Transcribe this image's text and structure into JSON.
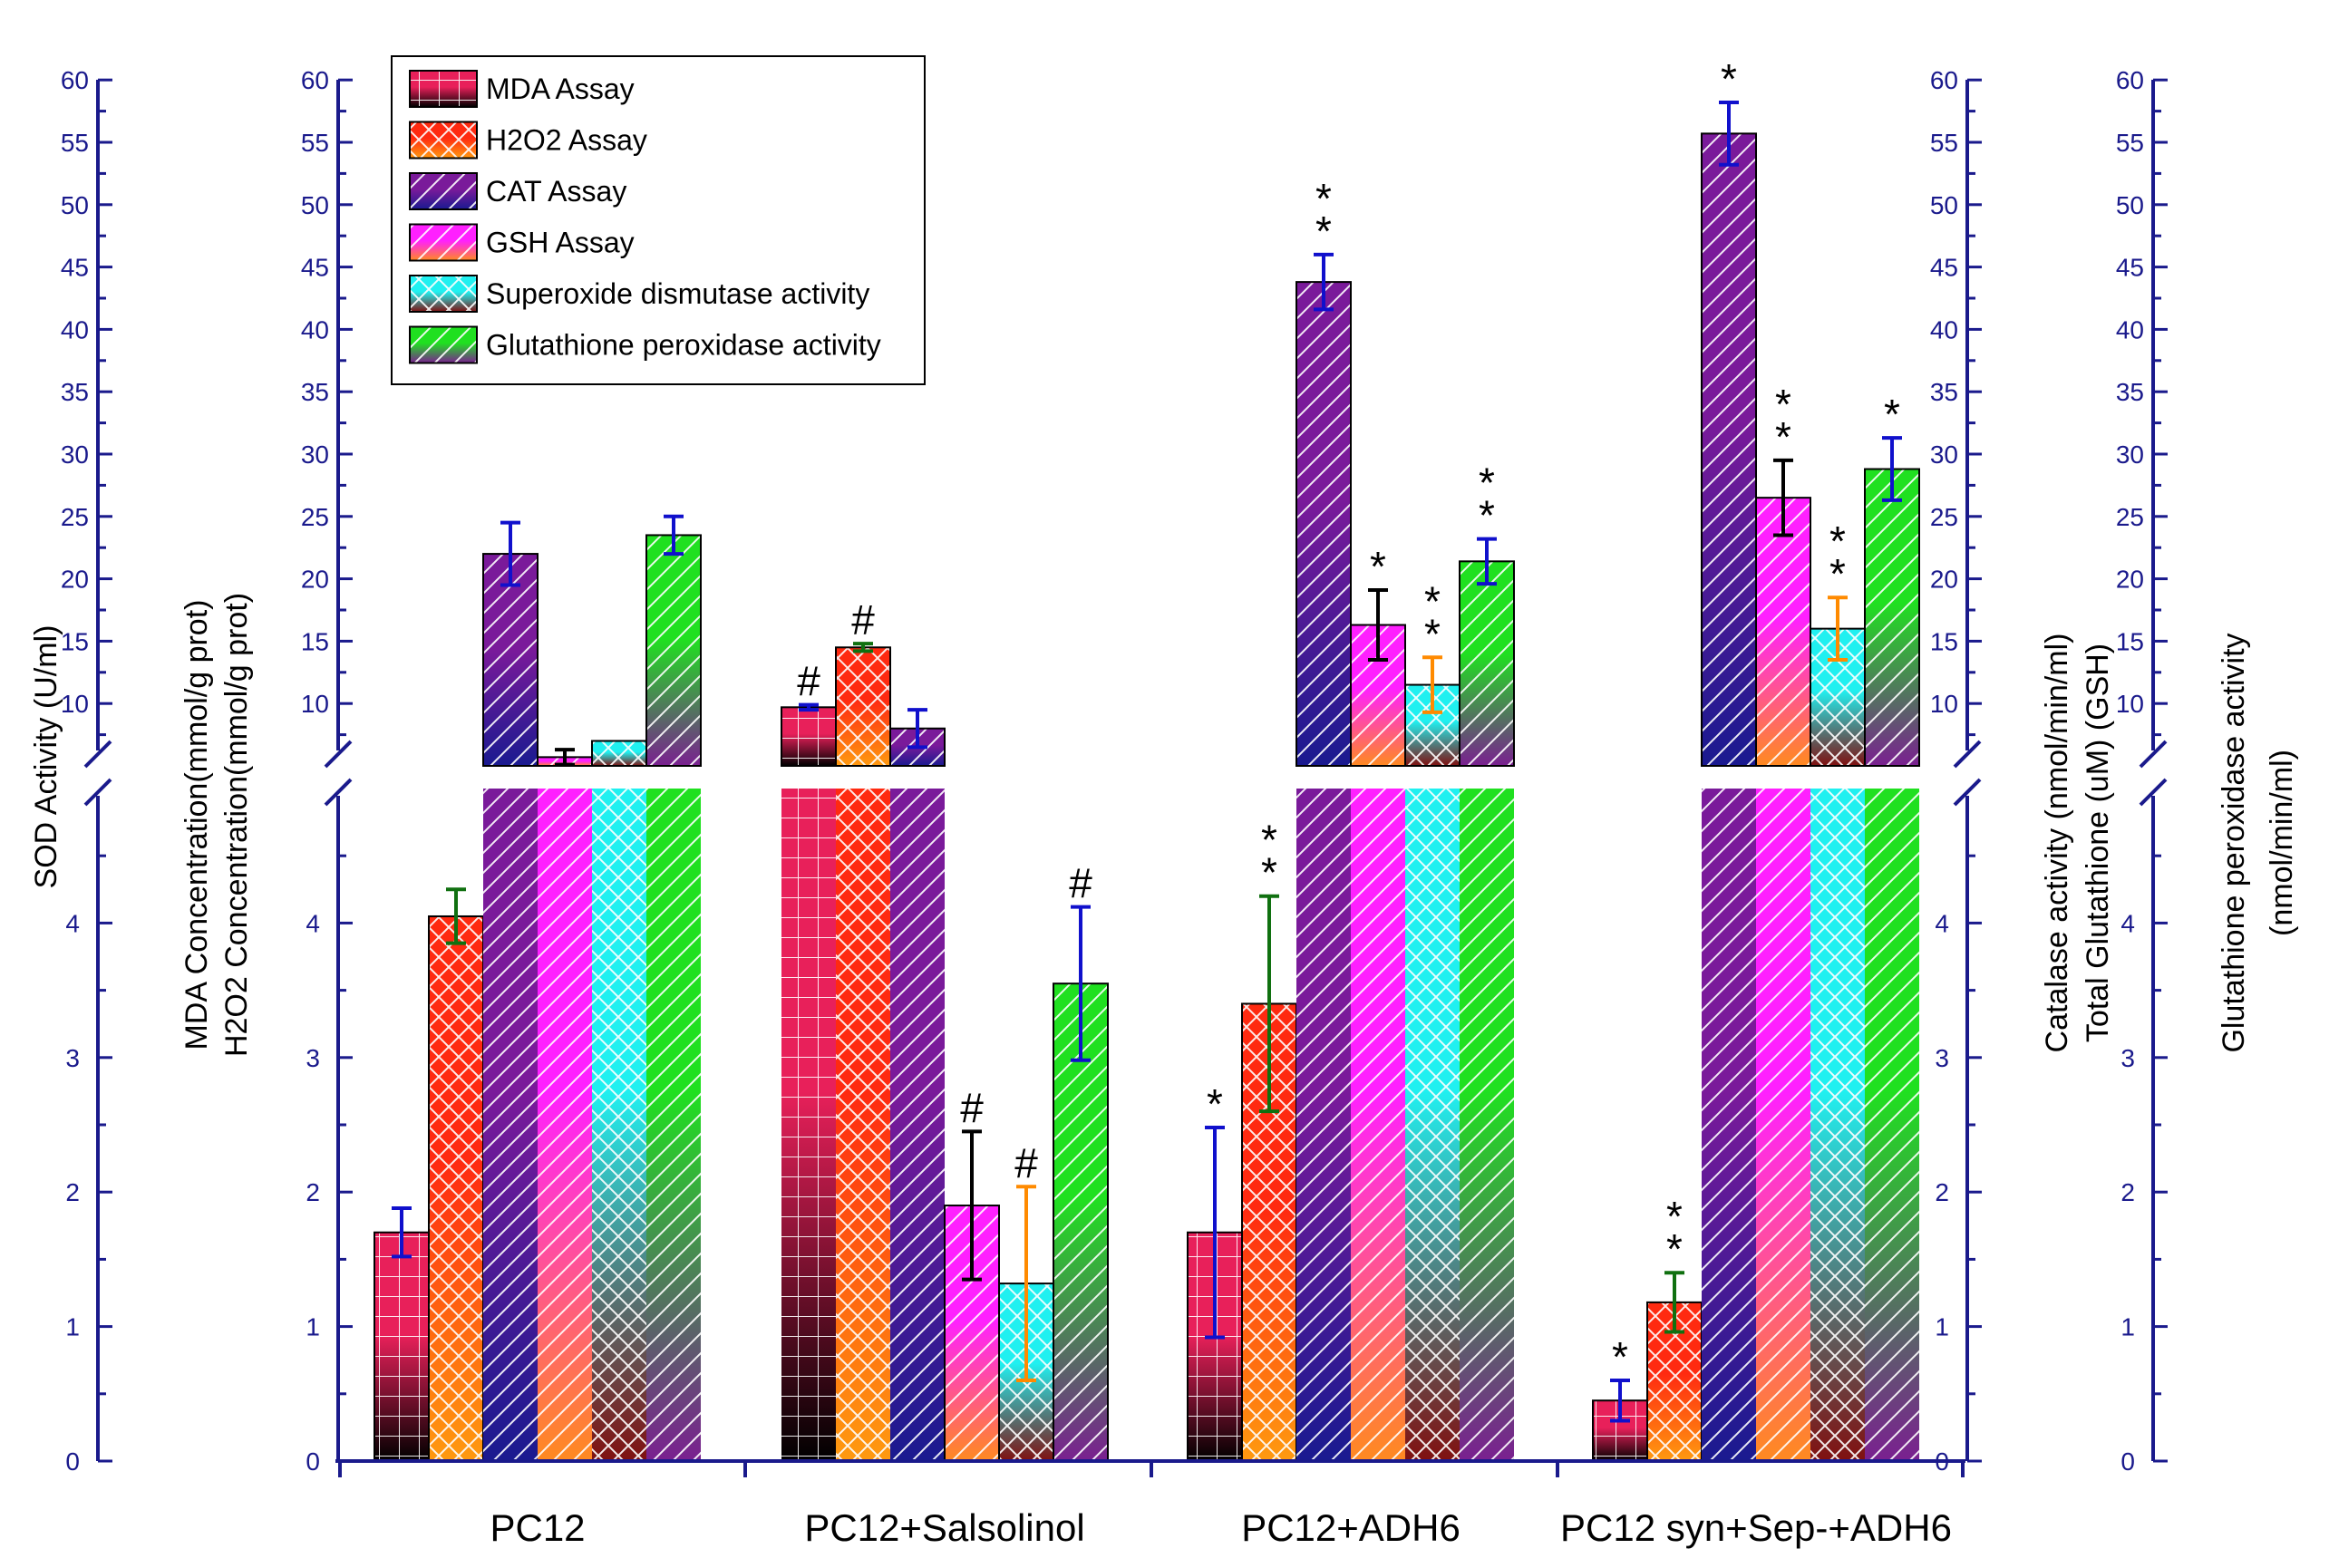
{
  "chart_data": {
    "type": "bar",
    "categories": [
      "PC12",
      "PC12+Salsolinol",
      "PC12+ADH6",
      "PC12 syn+Sep-+ADH6"
    ],
    "axis_break": {
      "lower_range": [
        0,
        5
      ],
      "upper_range": [
        5,
        60
      ]
    },
    "ylim": [
      0,
      60
    ],
    "axis_titles": {
      "sod": "SOD Activity (U/ml)",
      "mda": "MDA Concentration(mmol/g prot)",
      "h2o2": "H2O2 Concentration(mmol/g prot)",
      "catalase": "Catalase activity (nmol/min/ml)",
      "glutathione": "Total Glutathione (uM) (GSH)",
      "gpx_line1": "Glutathione peroxidase activity",
      "gpx_line2": "(nmol/min/ml)"
    },
    "lower_ticks": [
      "0",
      "1",
      "2",
      "3",
      "4"
    ],
    "upper_ticks": [
      "10",
      "15",
      "20",
      "25",
      "30",
      "35",
      "40",
      "45",
      "50",
      "55",
      "60"
    ],
    "series": [
      {
        "name": "MDA Assay",
        "color": "#e8205a",
        "dark": "#000000",
        "pattern": "grid",
        "err_color": "#1010cc",
        "values": [
          1.7,
          9.7,
          1.7,
          0.45
        ],
        "errors": [
          0.18,
          0.2,
          0.78,
          0.15
        ],
        "marks": [
          "",
          "#",
          "*",
          "*"
        ]
      },
      {
        "name": "H2O2 Assay",
        "color": "#ff2a10",
        "dark": "#ff9a10",
        "pattern": "cross",
        "err_color": "#107010",
        "values": [
          4.05,
          14.5,
          3.4,
          1.18
        ],
        "errors": [
          0.2,
          0.3,
          0.8,
          0.22
        ],
        "marks": [
          "",
          "#",
          "**",
          "**"
        ]
      },
      {
        "name": "CAT Assay",
        "color": "#7a1a9a",
        "dark": "#1a1a90",
        "pattern": "diag",
        "err_color": "#1010cc",
        "values": [
          22,
          8,
          43.8,
          55.7
        ],
        "errors": [
          2.5,
          1.5,
          2.2,
          2.5
        ],
        "marks": [
          "",
          "",
          "**",
          "*"
        ]
      },
      {
        "name": "GSH Assay",
        "color": "#ff20ff",
        "dark": "#ff8a20",
        "pattern": "diag",
        "err_color": "#000000",
        "values": [
          5.7,
          1.9,
          16.3,
          26.5
        ],
        "errors": [
          0.6,
          0.55,
          2.8,
          3.0
        ],
        "marks": [
          "",
          "#",
          "*",
          "**"
        ]
      },
      {
        "name": "Superoxide dismutase activity",
        "color": "#20f0f0",
        "dark": "#801010",
        "pattern": "cross",
        "err_color": "#ff8a00",
        "values": [
          7.0,
          1.32,
          11.5,
          16.0
        ],
        "errors": [
          0.0,
          0.72,
          2.2,
          2.5
        ],
        "marks": [
          "",
          "#",
          "**",
          "**"
        ]
      },
      {
        "name": "Glutathione peroxidase activity",
        "color": "#20e020",
        "dark": "#7a2090",
        "pattern": "diag",
        "err_color": "#1010cc",
        "values": [
          23.5,
          3.55,
          21.4,
          28.8
        ],
        "errors": [
          1.5,
          0.57,
          1.8,
          2.5
        ],
        "marks": [
          "",
          "#",
          "**",
          "*"
        ]
      }
    ],
    "legend_position": "top-left"
  }
}
